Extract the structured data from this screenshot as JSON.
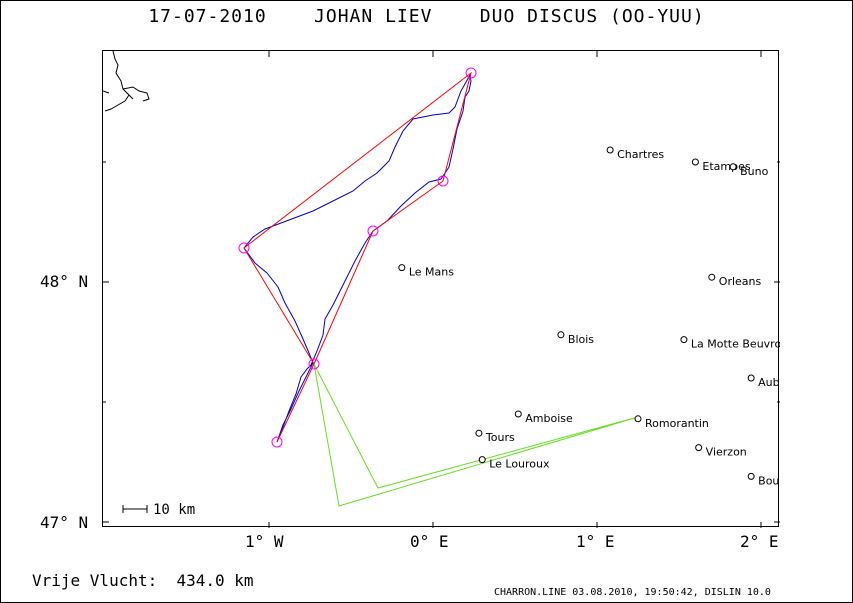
{
  "title": {
    "date": "17-07-2010",
    "pilot": "JOHAN LIEV",
    "glider": "DUO DISCUS (OO-YUU)"
  },
  "axes": {
    "lat_labels": [
      "48° N",
      "47° N"
    ],
    "lon_labels": [
      "1° W",
      "0° E",
      "1° E",
      "2° E"
    ]
  },
  "scale_bar": "10 km",
  "cities": [
    {
      "name": "Chartres",
      "lon": 1.08,
      "lat": 48.55
    },
    {
      "name": "Etampes",
      "lon": 1.6,
      "lat": 48.5
    },
    {
      "name": "Buno",
      "lon": 1.83,
      "lat": 48.48
    },
    {
      "name": "Le Mans",
      "lon": -0.19,
      "lat": 48.06
    },
    {
      "name": "Orleans",
      "lon": 1.7,
      "lat": 48.02
    },
    {
      "name": "Blois",
      "lon": 0.78,
      "lat": 47.78
    },
    {
      "name": "La Motte Beuvron",
      "lon": 1.53,
      "lat": 47.76
    },
    {
      "name": "Aubigny",
      "lon": 1.94,
      "lat": 47.6
    },
    {
      "name": "Amboise",
      "lon": 0.52,
      "lat": 47.45
    },
    {
      "name": "Romorantin",
      "lon": 1.25,
      "lat": 47.43
    },
    {
      "name": "Tours",
      "lon": 0.28,
      "lat": 47.37
    },
    {
      "name": "Vierzon",
      "lon": 1.62,
      "lat": 47.31
    },
    {
      "name": "Le Louroux",
      "lon": 0.3,
      "lat": 47.26
    },
    {
      "name": "Bourges",
      "lon": 1.94,
      "lat": 47.19
    }
  ],
  "free_flight": {
    "label": "Vrije Vlucht:",
    "value": "434.0 km"
  },
  "footer": "CHARRON.LINE 03.08.2010, 19:50:42, DISLIN 10.0",
  "colors": {
    "task_line": "#ff0000",
    "track": "#0000cc",
    "turnpoint": "#ff00ff",
    "alt_route": "#66dd22"
  }
}
